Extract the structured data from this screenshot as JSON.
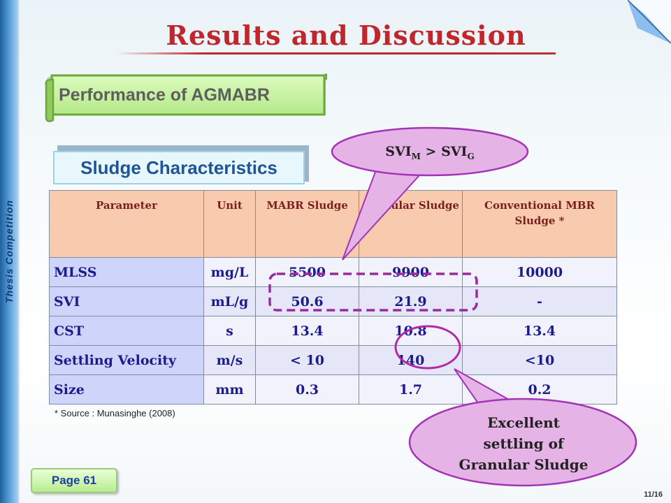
{
  "side_label": "Thesis Competition",
  "title": "Results and Discussion",
  "banner_text": "Performance of AGMABR",
  "subheading": "Sludge Characteristics",
  "table": {
    "headers": [
      "Parameter",
      "Unit",
      "MABR Sludge",
      "Granular Sludge",
      "Conventional MBR Sludge *"
    ],
    "rows": [
      [
        "MLSS",
        "mg/L",
        "5500",
        "9900",
        "10000"
      ],
      [
        "SVI",
        "mL/g",
        "50.6",
        "21.9",
        "-"
      ],
      [
        "CST",
        "s",
        "13.4",
        "10.8",
        "13.4"
      ],
      [
        "Settling Velocity",
        "m/s",
        "< 10",
        "140",
        "<10"
      ],
      [
        "Size",
        "mm",
        "0.3",
        "1.7",
        "0.2"
      ]
    ]
  },
  "source_note": "* Source : Munasinghe (2008)",
  "callout_top": {
    "base": "SVI",
    "sub_m": "M",
    "op": " > ",
    "sub_g": "G"
  },
  "callout_bottom": [
    "Excellent",
    "settling of",
    "Granular Sludge"
  ],
  "page_button": "Page 61",
  "slide_number": "11/16",
  "colors": {
    "title": "#c0272d",
    "header_fill": "#f9cbae",
    "param_fill": "#cfd4fb",
    "table_text": "#1b1b8a",
    "callout_fill": "#e5b3e6",
    "callout_stroke": "#a234b5",
    "highlight_stroke": "#9a2b9c",
    "banner_fill": "#c7f09b",
    "subhead_text": "#1e5596"
  }
}
